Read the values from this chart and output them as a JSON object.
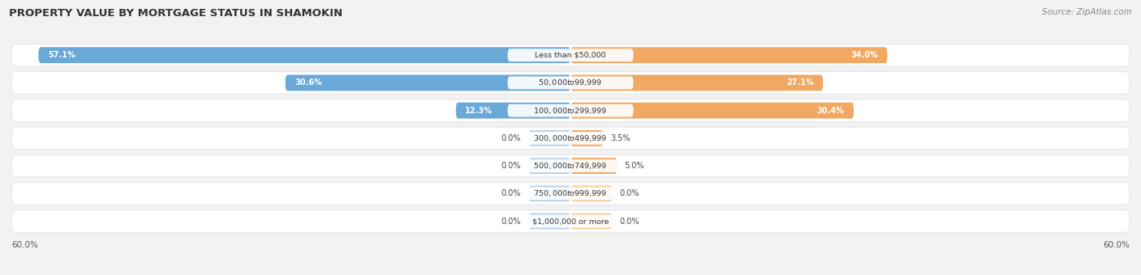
{
  "title": "PROPERTY VALUE BY MORTGAGE STATUS IN SHAMOKIN",
  "source": "Source: ZipAtlas.com",
  "categories": [
    "Less than $50,000",
    "$50,000 to $99,999",
    "$100,000 to $299,999",
    "$300,000 to $499,999",
    "$500,000 to $749,999",
    "$750,000 to $999,999",
    "$1,000,000 or more"
  ],
  "without_mortgage": [
    57.1,
    30.6,
    12.3,
    0.0,
    0.0,
    0.0,
    0.0
  ],
  "with_mortgage": [
    34.0,
    27.1,
    30.4,
    3.5,
    5.0,
    0.0,
    0.0
  ],
  "color_without": "#6aa8d8",
  "color_with": "#f0a862",
  "color_without_light": "#b8d4ea",
  "color_with_light": "#f5cfa0",
  "axis_limit": 60.0,
  "background_color": "#f2f2f2",
  "row_bg_color": "#ffffff",
  "label_inside_threshold": 8.0,
  "stub_size": 4.5
}
